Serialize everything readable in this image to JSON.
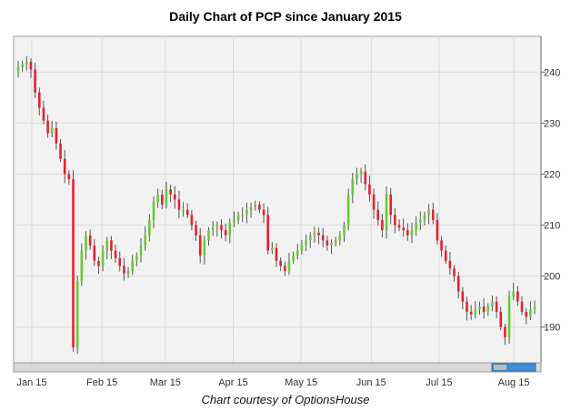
{
  "chart_data": {
    "type": "candlestick",
    "title": "Daily Chart of PCP since January 2015",
    "caption": "Chart courtesy of OptionsHouse",
    "xlabel": "",
    "ylabel": "",
    "ylim": [
      183,
      247
    ],
    "y_ticks": [
      "190",
      "200",
      "210",
      "220",
      "230",
      "240"
    ],
    "x_ticks": [
      {
        "date": "2015-01-02",
        "label": "Jan 15"
      },
      {
        "date": "2015-02-02",
        "label": "Feb 15"
      },
      {
        "date": "2015-03-02",
        "label": "Mar 15"
      },
      {
        "date": "2015-04-01",
        "label": "Apr 15"
      },
      {
        "date": "2015-05-01",
        "label": "May 15"
      },
      {
        "date": "2015-06-01",
        "label": "Jun 15"
      },
      {
        "date": "2015-07-01",
        "label": "Jul 15"
      },
      {
        "date": "2015-08-03",
        "label": "Aug 15"
      }
    ],
    "grid": true,
    "up_color": "#66cc33",
    "down_color": "#e8202a",
    "close_path": [
      241,
      241.5,
      242,
      240.5,
      236,
      233,
      230.5,
      228,
      229,
      226,
      223,
      220,
      219,
      186,
      199,
      205,
      208,
      206,
      203,
      202,
      205,
      207,
      205,
      203.5,
      202,
      200.5,
      201,
      203,
      204,
      206,
      208,
      211,
      214.5,
      216,
      214,
      217,
      216,
      215,
      213,
      213,
      212,
      210,
      208,
      204,
      207,
      209,
      209.5,
      210,
      209,
      208,
      210.5,
      211,
      212,
      212,
      213,
      213.5,
      214,
      213,
      212,
      205,
      205.5,
      203,
      202,
      201,
      203,
      204,
      205,
      206,
      207,
      208,
      208.5,
      208,
      207,
      206,
      206.5,
      207,
      208,
      210,
      216,
      219,
      220,
      220.5,
      218,
      216,
      213,
      211,
      209,
      216,
      212,
      210,
      209.5,
      209,
      208,
      209,
      210.5,
      211,
      212,
      213,
      211,
      207,
      205,
      203,
      201.5,
      200,
      197,
      195,
      193,
      192.5,
      193.5,
      194,
      193,
      194,
      195,
      193,
      190,
      188,
      196,
      197,
      195,
      193,
      192,
      193.5,
      194
    ]
  }
}
